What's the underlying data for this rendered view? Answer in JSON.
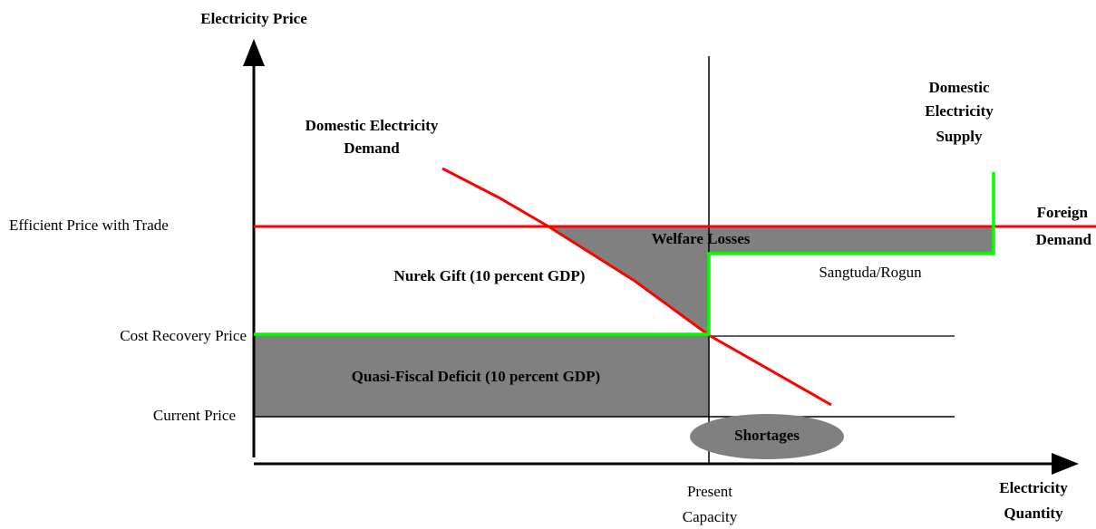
{
  "axes": {
    "y_title": "Electricity Price",
    "x_title": [
      "Electricity",
      "Quantity"
    ]
  },
  "price_levels": {
    "efficient": "Efficient Price with Trade",
    "cost_recovery": "Cost Recovery Price",
    "current": "Current Price"
  },
  "curves": {
    "demand": [
      "Domestic Electricity",
      "Demand"
    ],
    "supply": [
      "Domestic",
      "Electricity",
      "Supply"
    ],
    "foreign": [
      "Foreign",
      "Demand"
    ]
  },
  "areas": {
    "welfare": "Welfare Losses",
    "nurek": "Nurek Gift (10 percent GDP)",
    "deficit": "Quasi-Fiscal Deficit (10 percent GDP)",
    "shortages": "Shortages",
    "sangtuda": "Sangtuda/Rogun"
  },
  "capacity": [
    "Present",
    "Capacity"
  ]
}
